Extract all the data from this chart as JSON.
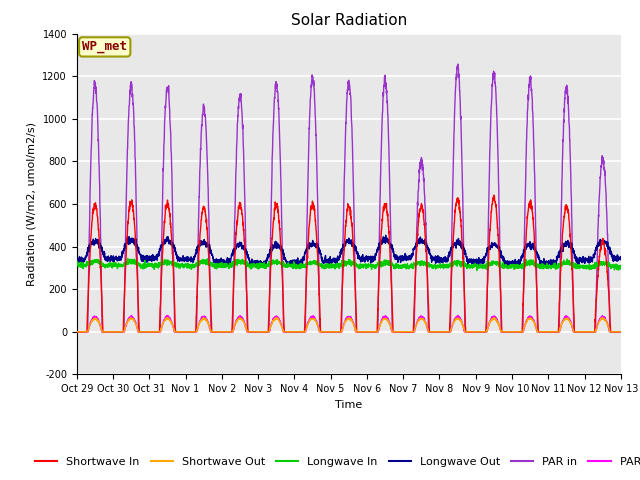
{
  "title": "Solar Radiation",
  "ylabel": "Radiation (W/m2, umol/m2/s)",
  "xlabel": "Time",
  "ylim": [
    -200,
    1400
  ],
  "yticks": [
    -200,
    0,
    200,
    400,
    600,
    800,
    1000,
    1200,
    1400
  ],
  "x_tick_labels": [
    "Oct 29",
    "Oct 30",
    "Oct 31",
    "Nov 1",
    "Nov 2",
    "Nov 3",
    "Nov 4",
    "Nov 5",
    "Nov 6",
    "Nov 7",
    "Nov 8",
    "Nov 9",
    "Nov 10",
    "Nov 11",
    "Nov 12",
    "Nov 13"
  ],
  "annotation_text": "WP_met",
  "annotation_box_color": "#FFFFCC",
  "annotation_box_edgecolor": "#999900",
  "annotation_text_color": "#880000",
  "colors": {
    "shortwave_in": "#FF0000",
    "shortwave_out": "#FFA500",
    "longwave_in": "#00CC00",
    "longwave_out": "#00008B",
    "par_in": "#9933CC",
    "par_out": "#FF00FF"
  },
  "legend_labels": [
    "Shortwave In",
    "Shortwave Out",
    "Longwave In",
    "Longwave Out",
    "PAR in",
    "PAR out"
  ],
  "plot_bg_color": "#E8E8E8",
  "fig_bg_color": "#FFFFFF",
  "grid_color": "#FFFFFF",
  "num_days": 15,
  "n_points": 3000,
  "title_fontsize": 11,
  "axis_label_fontsize": 8,
  "tick_fontsize": 7,
  "legend_fontsize": 8
}
